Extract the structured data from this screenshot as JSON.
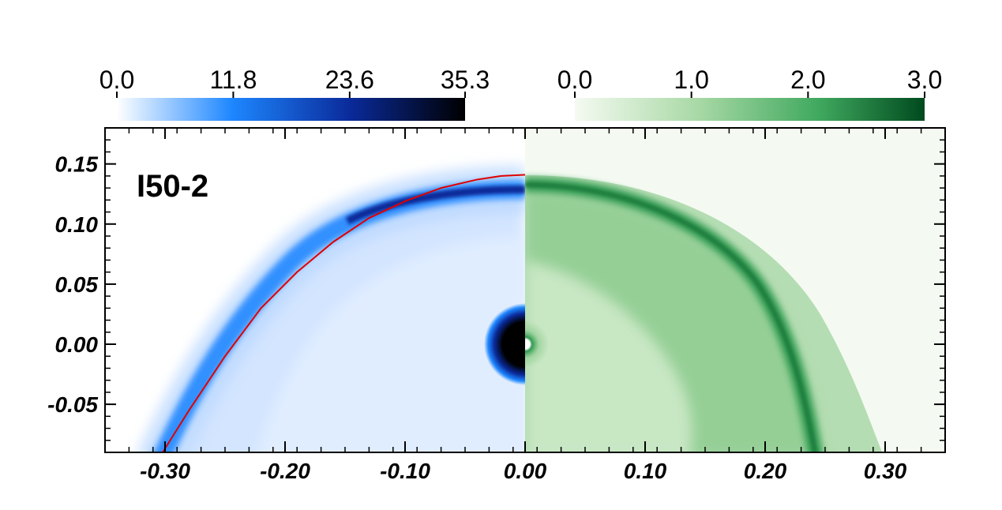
{
  "chart_data": {
    "type": "heatmap",
    "panel_label": "I50-2",
    "x_ticks": [
      -0.3,
      -0.2,
      -0.1,
      0.0,
      0.1,
      0.2,
      0.3
    ],
    "x_tick_labels": [
      "-0.30",
      "-0.20",
      "-0.10",
      "0.00",
      "0.10",
      "0.20",
      "0.30"
    ],
    "y_ticks": [
      -0.05,
      0.0,
      0.05,
      0.1,
      0.15
    ],
    "y_tick_labels": [
      "-0.05",
      "0.00",
      "0.05",
      "0.10",
      "0.15"
    ],
    "xlim": [
      -0.35,
      0.35
    ],
    "ylim": [
      -0.09,
      0.18
    ],
    "colorbars": [
      {
        "colormap": "blues",
        "range": [
          0.0,
          35.3
        ],
        "ticks": [
          0.0,
          11.8,
          23.6,
          35.3
        ],
        "tick_labels": [
          "0.0",
          "11.8",
          "23.6",
          "35.3"
        ],
        "colors": [
          "#ffffff",
          "#1e87ff",
          "#0a2a9a",
          "#000000"
        ]
      },
      {
        "colormap": "greens",
        "range": [
          0.0,
          3.0
        ],
        "ticks": [
          0.0,
          1.0,
          2.0,
          3.0
        ],
        "tick_labels": [
          "0.0",
          "1.0",
          "2.0",
          "3.0"
        ],
        "colors": [
          "#f5faf2",
          "#8ccc8e",
          "#2e9a50",
          "#004a1e"
        ]
      }
    ],
    "bow_shock_curve": {
      "color": "#e00000",
      "points": [
        [
          -0.302,
          -0.09
        ],
        [
          -0.28,
          -0.055
        ],
        [
          -0.25,
          -0.01
        ],
        [
          -0.22,
          0.03
        ],
        [
          -0.19,
          0.06
        ],
        [
          -0.16,
          0.085
        ],
        [
          -0.13,
          0.105
        ],
        [
          -0.1,
          0.119
        ],
        [
          -0.07,
          0.13
        ],
        [
          -0.04,
          0.137
        ],
        [
          -0.02,
          0.14
        ],
        [
          0.0,
          0.141
        ]
      ]
    },
    "left_half": {
      "quantity_colorbar": 0,
      "shell_peak_value": 30,
      "center_value": 35.3
    },
    "right_half": {
      "quantity_colorbar": 1,
      "shell_peak_value": 2.6,
      "background_value": 0.05
    }
  }
}
